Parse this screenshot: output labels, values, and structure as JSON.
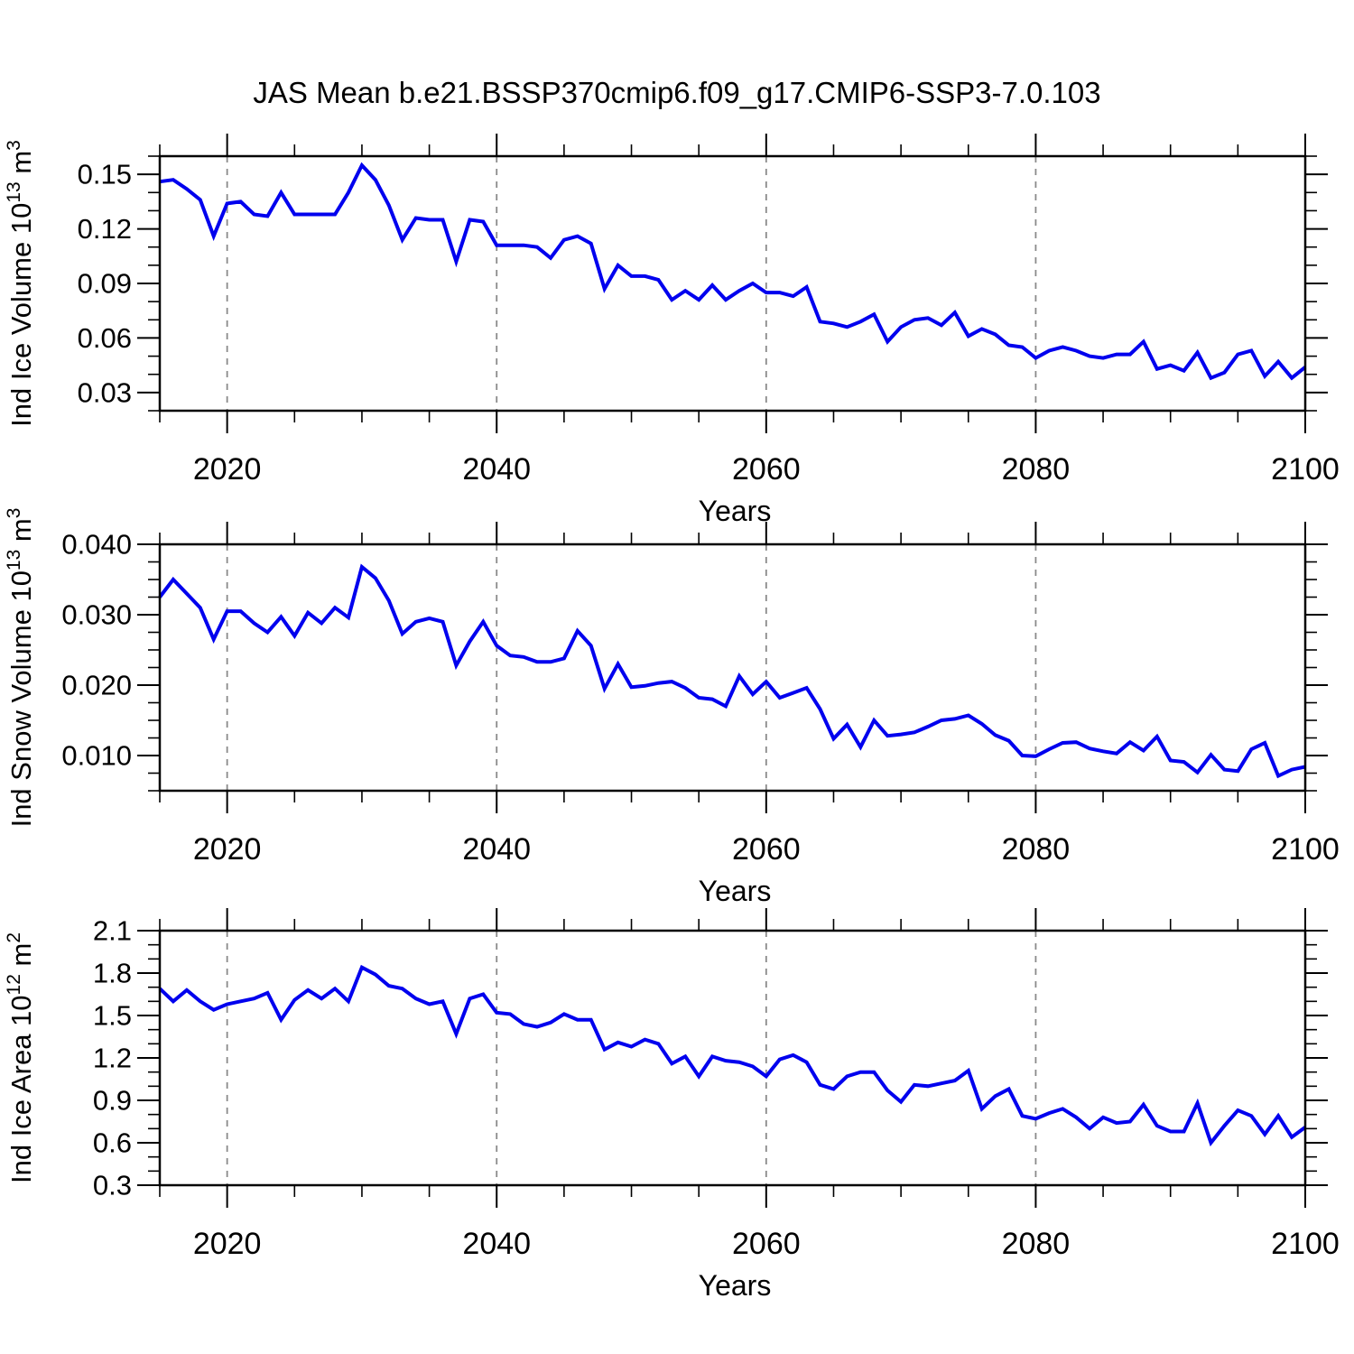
{
  "title": "JAS Mean b.e21.BSSP370cmip6.f09_g17.CMIP6-SSP3-7.0.103",
  "xlabel": "Years",
  "colors": {
    "line": "#0000EE",
    "grid": "#8A8A8A",
    "frame": "#000000",
    "text": "#000000",
    "background": "#FFFFFF"
  },
  "years": [
    2015,
    2016,
    2017,
    2018,
    2019,
    2020,
    2021,
    2022,
    2023,
    2024,
    2025,
    2026,
    2027,
    2028,
    2029,
    2030,
    2031,
    2032,
    2033,
    2034,
    2035,
    2036,
    2037,
    2038,
    2039,
    2040,
    2041,
    2042,
    2043,
    2044,
    2045,
    2046,
    2047,
    2048,
    2049,
    2050,
    2051,
    2052,
    2053,
    2054,
    2055,
    2056,
    2057,
    2058,
    2059,
    2060,
    2061,
    2062,
    2063,
    2064,
    2065,
    2066,
    2067,
    2068,
    2069,
    2070,
    2071,
    2072,
    2073,
    2074,
    2075,
    2076,
    2077,
    2078,
    2079,
    2080,
    2081,
    2082,
    2083,
    2084,
    2085,
    2086,
    2087,
    2088,
    2089,
    2090,
    2091,
    2092,
    2093,
    2094,
    2095,
    2096,
    2097,
    2098,
    2099,
    2100
  ],
  "chart_data": [
    {
      "type": "line",
      "name": "ind-ice-volume",
      "ylabel_plain": "Ind Ice Volume 10^13 m^3",
      "ylabel_segments": [
        {
          "text": "Ind Ice Volume 10"
        },
        {
          "text": "13",
          "sup": true
        },
        {
          "text": " m"
        },
        {
          "text": "3",
          "sup": true
        }
      ],
      "ylim": [
        0.02,
        0.16
      ],
      "ytick_values": [
        0.03,
        0.06,
        0.09,
        0.12,
        0.15
      ],
      "ytick_labels": [
        "0.03",
        "0.06",
        "0.09",
        "0.12",
        "0.15"
      ],
      "y_minor_step": 0.01,
      "xlabel": "Years",
      "xlim": [
        2015,
        2100
      ],
      "xtick_values": [
        2020,
        2040,
        2060,
        2080,
        2100
      ],
      "xtick_labels": [
        "2020",
        "2040",
        "2060",
        "2080",
        "2100"
      ],
      "x_minor_step": 5,
      "grid_x": [
        2020,
        2040,
        2060,
        2080
      ],
      "legend": "none",
      "values": [
        0.146,
        0.147,
        0.142,
        0.136,
        0.116,
        0.134,
        0.135,
        0.128,
        0.127,
        0.14,
        0.128,
        0.128,
        0.128,
        0.128,
        0.14,
        0.155,
        0.147,
        0.133,
        0.114,
        0.126,
        0.125,
        0.125,
        0.102,
        0.125,
        0.124,
        0.111,
        0.111,
        0.111,
        0.11,
        0.104,
        0.114,
        0.116,
        0.112,
        0.087,
        0.1,
        0.094,
        0.094,
        0.092,
        0.081,
        0.086,
        0.081,
        0.089,
        0.081,
        0.086,
        0.09,
        0.085,
        0.085,
        0.083,
        0.088,
        0.069,
        0.068,
        0.066,
        0.069,
        0.073,
        0.058,
        0.066,
        0.07,
        0.071,
        0.067,
        0.074,
        0.061,
        0.065,
        0.062,
        0.056,
        0.055,
        0.049,
        0.053,
        0.055,
        0.053,
        0.05,
        0.049,
        0.051,
        0.051,
        0.058,
        0.043,
        0.045,
        0.042,
        0.052,
        0.038,
        0.041,
        0.051,
        0.053,
        0.039,
        0.047,
        0.038,
        0.044
      ]
    },
    {
      "type": "line",
      "name": "ind-snow-volume",
      "ylabel_plain": "Ind Snow Volume 10^13 m^3",
      "ylabel_segments": [
        {
          "text": "Ind Snow Volume 10"
        },
        {
          "text": "13",
          "sup": true
        },
        {
          "text": " m"
        },
        {
          "text": "3",
          "sup": true
        }
      ],
      "ylim": [
        0.005,
        0.04
      ],
      "ytick_values": [
        0.01,
        0.02,
        0.03,
        0.04
      ],
      "ytick_labels": [
        "0.010",
        "0.020",
        "0.030",
        "0.040"
      ],
      "y_minor_step": 0.0025,
      "xlabel": "Years",
      "xlim": [
        2015,
        2100
      ],
      "xtick_values": [
        2020,
        2040,
        2060,
        2080,
        2100
      ],
      "xtick_labels": [
        "2020",
        "2040",
        "2060",
        "2080",
        "2100"
      ],
      "x_minor_step": 5,
      "grid_x": [
        2020,
        2040,
        2060,
        2080
      ],
      "legend": "none",
      "values": [
        0.0325,
        0.035,
        0.033,
        0.031,
        0.0265,
        0.0305,
        0.0305,
        0.0288,
        0.0275,
        0.0297,
        0.027,
        0.0303,
        0.0288,
        0.031,
        0.0296,
        0.0368,
        0.0352,
        0.032,
        0.0273,
        0.029,
        0.0295,
        0.029,
        0.0228,
        0.0262,
        0.029,
        0.0256,
        0.0242,
        0.024,
        0.0233,
        0.0233,
        0.0238,
        0.0277,
        0.0256,
        0.0195,
        0.023,
        0.0197,
        0.0199,
        0.0203,
        0.0205,
        0.0196,
        0.0182,
        0.018,
        0.017,
        0.0213,
        0.0187,
        0.0205,
        0.0182,
        0.0189,
        0.0196,
        0.0166,
        0.0124,
        0.0144,
        0.0112,
        0.015,
        0.0128,
        0.013,
        0.0133,
        0.0141,
        0.015,
        0.0152,
        0.0157,
        0.0145,
        0.0129,
        0.0121,
        0.01,
        0.0099,
        0.0109,
        0.0118,
        0.0119,
        0.011,
        0.0106,
        0.0103,
        0.0119,
        0.0107,
        0.0127,
        0.0093,
        0.0091,
        0.0076,
        0.0101,
        0.008,
        0.0078,
        0.0109,
        0.0118,
        0.0071,
        0.008,
        0.0084
      ]
    },
    {
      "type": "line",
      "name": "ind-ice-area",
      "ylabel_plain": "Ind Ice Area 10^12 m^2",
      "ylabel_segments": [
        {
          "text": "Ind Ice Area 10"
        },
        {
          "text": "12",
          "sup": true
        },
        {
          "text": " m"
        },
        {
          "text": "2",
          "sup": true
        }
      ],
      "ylim": [
        0.3,
        2.1
      ],
      "ytick_values": [
        0.3,
        0.6,
        0.9,
        1.2,
        1.5,
        1.8,
        2.1
      ],
      "ytick_labels": [
        "0.3",
        "0.6",
        "0.9",
        "1.2",
        "1.5",
        "1.8",
        "2.1"
      ],
      "y_minor_step": 0.1,
      "xlabel": "Years",
      "xlim": [
        2015,
        2100
      ],
      "xtick_values": [
        2020,
        2040,
        2060,
        2080,
        2100
      ],
      "xtick_labels": [
        "2020",
        "2040",
        "2060",
        "2080",
        "2100"
      ],
      "x_minor_step": 5,
      "grid_x": [
        2020,
        2040,
        2060,
        2080
      ],
      "legend": "none",
      "values": [
        1.69,
        1.6,
        1.68,
        1.6,
        1.54,
        1.58,
        1.6,
        1.62,
        1.66,
        1.47,
        1.61,
        1.68,
        1.62,
        1.69,
        1.6,
        1.84,
        1.79,
        1.71,
        1.69,
        1.62,
        1.58,
        1.6,
        1.37,
        1.62,
        1.65,
        1.52,
        1.51,
        1.44,
        1.42,
        1.45,
        1.51,
        1.47,
        1.47,
        1.26,
        1.31,
        1.28,
        1.33,
        1.3,
        1.16,
        1.21,
        1.07,
        1.21,
        1.18,
        1.17,
        1.14,
        1.07,
        1.19,
        1.22,
        1.17,
        1.01,
        0.98,
        1.07,
        1.1,
        1.1,
        0.97,
        0.89,
        1.01,
        1.0,
        1.02,
        1.04,
        1.11,
        0.84,
        0.93,
        0.98,
        0.79,
        0.77,
        0.81,
        0.84,
        0.78,
        0.7,
        0.78,
        0.74,
        0.75,
        0.87,
        0.72,
        0.68,
        0.68,
        0.88,
        0.6,
        0.72,
        0.83,
        0.79,
        0.66,
        0.79,
        0.64,
        0.71
      ]
    }
  ]
}
